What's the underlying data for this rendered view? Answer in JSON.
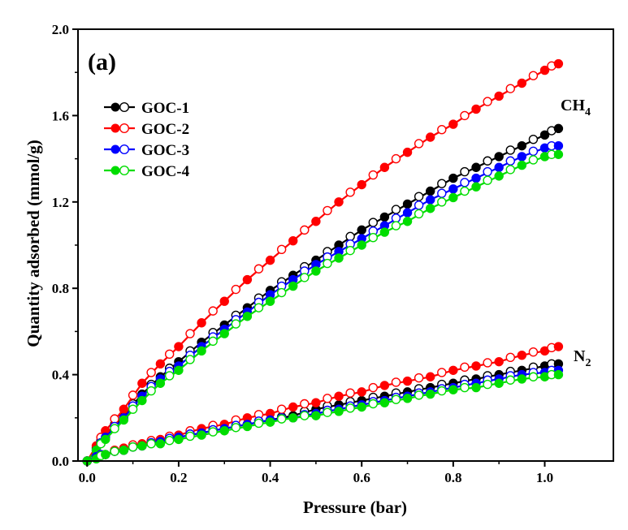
{
  "chart_data": {
    "type": "line",
    "panel_label": "(a)",
    "xlabel": "Pressure (bar)",
    "ylabel": "Quantity adsorbed (mmol/g)",
    "xlim": [
      -0.02,
      1.15
    ],
    "ylim": [
      0.0,
      2.0
    ],
    "xticks": [
      "0.0",
      "0.2",
      "0.4",
      "0.6",
      "0.8",
      "1.0"
    ],
    "xtick_values": [
      0.0,
      0.2,
      0.4,
      0.6,
      0.8,
      1.0
    ],
    "yticks": [
      "0.0",
      "0.4",
      "0.8",
      "1.2",
      "1.6",
      "2.0"
    ],
    "ytick_values": [
      0.0,
      0.4,
      0.8,
      1.2,
      1.6,
      2.0
    ],
    "grid": false,
    "legend_position": "top-left",
    "annotations": [
      {
        "text": "CH",
        "sub": "4",
        "group": "CH4"
      },
      {
        "text": "N",
        "sub": "2",
        "group": "N2"
      }
    ],
    "x": [
      0.0,
      0.02,
      0.04,
      0.08,
      0.12,
      0.16,
      0.2,
      0.25,
      0.3,
      0.35,
      0.4,
      0.45,
      0.5,
      0.55,
      0.6,
      0.65,
      0.7,
      0.75,
      0.8,
      0.85,
      0.9,
      0.95,
      1.0,
      1.03
    ],
    "series": [
      {
        "name": "GOC-1",
        "group": "CH4",
        "color": "#000000",
        "values": [
          0.0,
          0.06,
          0.12,
          0.21,
          0.31,
          0.39,
          0.46,
          0.55,
          0.63,
          0.71,
          0.79,
          0.86,
          0.93,
          1.0,
          1.07,
          1.13,
          1.19,
          1.25,
          1.31,
          1.36,
          1.41,
          1.46,
          1.51,
          1.54
        ]
      },
      {
        "name": "GOC-2",
        "group": "CH4",
        "color": "#ff0000",
        "values": [
          0.0,
          0.07,
          0.14,
          0.24,
          0.36,
          0.45,
          0.53,
          0.64,
          0.74,
          0.84,
          0.93,
          1.02,
          1.11,
          1.2,
          1.28,
          1.36,
          1.43,
          1.5,
          1.56,
          1.63,
          1.69,
          1.75,
          1.81,
          1.84
        ]
      },
      {
        "name": "GOC-3",
        "group": "CH4",
        "color": "#0000ff",
        "values": [
          0.0,
          0.05,
          0.11,
          0.2,
          0.3,
          0.38,
          0.44,
          0.53,
          0.61,
          0.69,
          0.77,
          0.84,
          0.91,
          0.97,
          1.03,
          1.09,
          1.15,
          1.21,
          1.26,
          1.31,
          1.36,
          1.41,
          1.45,
          1.46
        ]
      },
      {
        "name": "GOC-4",
        "group": "CH4",
        "color": "#00dd00",
        "values": [
          0.0,
          0.05,
          0.1,
          0.19,
          0.28,
          0.36,
          0.42,
          0.51,
          0.59,
          0.67,
          0.74,
          0.81,
          0.88,
          0.94,
          1.0,
          1.06,
          1.11,
          1.17,
          1.22,
          1.27,
          1.32,
          1.37,
          1.41,
          1.42
        ]
      },
      {
        "group": "N2",
        "color": "#000000",
        "values": [
          0.0,
          0.02,
          0.03,
          0.05,
          0.07,
          0.09,
          0.11,
          0.13,
          0.15,
          0.17,
          0.19,
          0.21,
          0.24,
          0.26,
          0.28,
          0.3,
          0.32,
          0.34,
          0.36,
          0.38,
          0.4,
          0.42,
          0.44,
          0.45
        ]
      },
      {
        "group": "N2",
        "color": "#ff0000",
        "values": [
          0.0,
          0.02,
          0.03,
          0.06,
          0.08,
          0.1,
          0.12,
          0.15,
          0.17,
          0.2,
          0.22,
          0.25,
          0.27,
          0.3,
          0.32,
          0.35,
          0.37,
          0.39,
          0.42,
          0.44,
          0.46,
          0.49,
          0.51,
          0.53
        ]
      },
      {
        "group": "N2",
        "color": "#0000ff",
        "values": [
          0.0,
          0.02,
          0.03,
          0.05,
          0.07,
          0.09,
          0.11,
          0.13,
          0.15,
          0.17,
          0.19,
          0.2,
          0.22,
          0.24,
          0.26,
          0.28,
          0.3,
          0.32,
          0.34,
          0.36,
          0.38,
          0.4,
          0.41,
          0.42
        ]
      },
      {
        "group": "N2",
        "color": "#00dd00",
        "values": [
          0.0,
          0.01,
          0.03,
          0.05,
          0.07,
          0.08,
          0.1,
          0.12,
          0.14,
          0.16,
          0.18,
          0.2,
          0.21,
          0.23,
          0.25,
          0.27,
          0.29,
          0.31,
          0.33,
          0.34,
          0.36,
          0.38,
          0.39,
          0.4
        ]
      }
    ]
  }
}
